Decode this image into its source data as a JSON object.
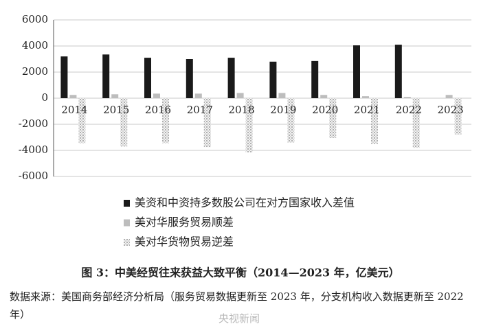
{
  "chart_data": {
    "type": "bar",
    "categories": [
      "2014",
      "2015",
      "2016",
      "2017",
      "2018",
      "2019",
      "2020",
      "2021",
      "2022",
      "2023"
    ],
    "series": [
      {
        "name": "美资和中资持多数股公司在对方国家收入差值",
        "color": "#1a1a1a",
        "values": [
          3200,
          3350,
          3100,
          3000,
          3100,
          2800,
          2850,
          4050,
          4100,
          null
        ]
      },
      {
        "name": "美对华服务贸易顺差",
        "color": "#bdbdbd",
        "values": [
          250,
          300,
          350,
          350,
          400,
          400,
          250,
          150,
          100,
          250
        ]
      },
      {
        "name": "美对华货物贸易逆差",
        "color": "#c4c4c4",
        "hatch": true,
        "values": [
          -3450,
          -3700,
          -3450,
          -3750,
          -4150,
          -3400,
          -3050,
          -3500,
          -3800,
          -2800
        ]
      }
    ],
    "ylim": [
      -6000,
      6000
    ],
    "yticks": [
      -6000,
      -4000,
      -2000,
      0,
      2000,
      4000,
      6000
    ],
    "grid": true,
    "caption": "图 3：中美经贸往来获益大致平衡（2014—2023 年，亿美元）",
    "source": "数据来源：美国商务部经济分析局（服务贸易数据更新至 2023 年，分支机构收入数据更新至 2022 年）",
    "watermark": "央视新闻"
  }
}
